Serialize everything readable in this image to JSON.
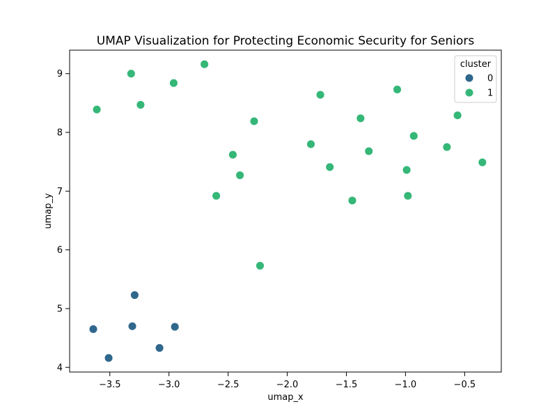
{
  "chart_data": {
    "type": "scatter",
    "title": "UMAP Visualization for Protecting Economic Security for Seniors",
    "xlabel": "umap_x",
    "ylabel": "umap_y",
    "xlim": [
      -3.84,
      -0.19
    ],
    "ylim": [
      3.92,
      9.4
    ],
    "xticks": [
      -3.5,
      -3.0,
      -2.5,
      -2.0,
      -1.5,
      -1.0,
      -0.5
    ],
    "xtick_labels": [
      "−3.5",
      "−3.0",
      "−2.5",
      "−2.0",
      "−1.5",
      "−1.0",
      "−0.5"
    ],
    "yticks": [
      4,
      5,
      6,
      7,
      8,
      9
    ],
    "ytick_labels": [
      "4",
      "5",
      "6",
      "7",
      "8",
      "9"
    ],
    "grid": false,
    "legend": {
      "title": "cluster",
      "placement": "top-right",
      "entries": [
        {
          "label": "0",
          "color": "#30678d"
        },
        {
          "label": "1",
          "color": "#35b778"
        }
      ]
    },
    "series": [
      {
        "name": "0",
        "color": "#30678d",
        "points": [
          {
            "x": -3.64,
            "y": 4.65
          },
          {
            "x": -3.51,
            "y": 4.16
          },
          {
            "x": -3.31,
            "y": 4.7
          },
          {
            "x": -3.29,
            "y": 5.23
          },
          {
            "x": -3.08,
            "y": 4.33
          },
          {
            "x": -2.95,
            "y": 4.69
          }
        ]
      },
      {
        "name": "1",
        "color": "#35b778",
        "points": [
          {
            "x": -3.61,
            "y": 8.39
          },
          {
            "x": -3.32,
            "y": 9.0
          },
          {
            "x": -3.24,
            "y": 8.47
          },
          {
            "x": -2.96,
            "y": 8.84
          },
          {
            "x": -2.7,
            "y": 9.16
          },
          {
            "x": -2.6,
            "y": 6.92
          },
          {
            "x": -2.46,
            "y": 7.62
          },
          {
            "x": -2.4,
            "y": 7.27
          },
          {
            "x": -2.28,
            "y": 8.19
          },
          {
            "x": -2.23,
            "y": 5.73
          },
          {
            "x": -1.8,
            "y": 7.8
          },
          {
            "x": -1.72,
            "y": 8.64
          },
          {
            "x": -1.64,
            "y": 7.41
          },
          {
            "x": -1.45,
            "y": 6.84
          },
          {
            "x": -1.38,
            "y": 8.24
          },
          {
            "x": -1.31,
            "y": 7.68
          },
          {
            "x": -1.07,
            "y": 8.73
          },
          {
            "x": -0.99,
            "y": 7.36
          },
          {
            "x": -0.98,
            "y": 6.92
          },
          {
            "x": -0.93,
            "y": 7.94
          },
          {
            "x": -0.65,
            "y": 7.75
          },
          {
            "x": -0.56,
            "y": 8.29
          },
          {
            "x": -0.35,
            "y": 7.49
          }
        ]
      }
    ]
  }
}
